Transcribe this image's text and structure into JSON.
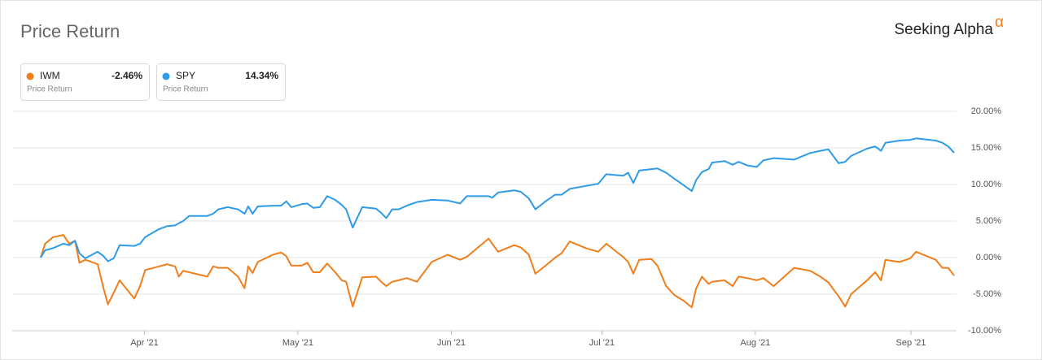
{
  "chart_data": {
    "type": "line",
    "title": "Price Return",
    "brand": "Seeking Alpha",
    "brand_mark": "α",
    "x": [
      0,
      0.6,
      1.7,
      3.1,
      3.9,
      4.7,
      5.3,
      6.1,
      7.8,
      8.6,
      9.2,
      10.0,
      10.8,
      12.8,
      13.6,
      14.3,
      16.2,
      17.3,
      18.4,
      18.9,
      19.5,
      20.3,
      22.8,
      23.6,
      24.3,
      25.6,
      27.0,
      27.9,
      28.4,
      29.0,
      29.7,
      31.8,
      32.9,
      33.6,
      34.3,
      35.7,
      36.5,
      37.3,
      38.2,
      39.2,
      40.3,
      41.2,
      41.8,
      42.7,
      44.0,
      45.9,
      46.6,
      47.3,
      48.1,
      49.0,
      50.1,
      51.5,
      53.5,
      55.7,
      57.4,
      58.3,
      61.3,
      61.8,
      62.6,
      64.8,
      65.7,
      66.8,
      67.7,
      69.1,
      70.4,
      71.3,
      72.4,
      74.6,
      76.3,
      77.4,
      79.7,
      80.4,
      81.1,
      81.9,
      83.6,
      84.4,
      85.6,
      86.7,
      88.0,
      89.1,
      89.7,
      90.5,
      91.4,
      91.9,
      93.6,
      94.7,
      95.5,
      96.7,
      98.0,
      98.9,
      100.3,
      103.1,
      105.3,
      106.7,
      107.8,
      109.2,
      110.1,
      110.9,
      113.1,
      114.2,
      115.0,
      115.6,
      117.5,
      119.0,
      119.8,
      122.5,
      123.4,
      124.2,
      125
    ],
    "series": [
      {
        "name": "IWM",
        "color": "#f07e1b",
        "last_label": "-2.46%",
        "subtitle": "Price Return",
        "values": [
          0,
          1.9,
          2.8,
          3.1,
          1.9,
          2.3,
          -0.7,
          -0.3,
          -0.9,
          -4.2,
          -6.4,
          -4.8,
          -3.1,
          -5.6,
          -3.9,
          -1.7,
          -1.2,
          -0.9,
          -1.2,
          -2.6,
          -1.8,
          -2.0,
          -2.6,
          -1.2,
          -1.4,
          -1.4,
          -2.6,
          -4.2,
          -1.2,
          -2.1,
          -0.6,
          0.4,
          0.7,
          0.2,
          -1.1,
          -1.1,
          -0.7,
          -2.0,
          -2.0,
          -0.8,
          -2.0,
          -3.1,
          -3.3,
          -6.7,
          -2.7,
          -2.6,
          -3.3,
          -3.9,
          -3.3,
          -3.1,
          -2.8,
          -3.3,
          -0.6,
          0.4,
          -0.3,
          0.1,
          2.6,
          1.9,
          0.8,
          1.7,
          1.4,
          0.4,
          -2.2,
          -1.1,
          0,
          0.6,
          2.2,
          1.3,
          0.8,
          1.9,
          0.1,
          -0.6,
          -2.2,
          -0.3,
          -0.2,
          -1.1,
          -3.9,
          -5.1,
          -5.9,
          -6.8,
          -4.2,
          -2.6,
          -3.6,
          -3.3,
          -3.1,
          -3.9,
          -2.6,
          -2.8,
          -3.1,
          -2.8,
          -3.9,
          -1.4,
          -1.8,
          -2.6,
          -3.4,
          -5.3,
          -6.7,
          -5.0,
          -3.1,
          -2.0,
          -3.1,
          -0.3,
          -0.6,
          -0.1,
          0.8,
          -0.3,
          -1.4,
          -1.4,
          -2.46
        ]
      },
      {
        "name": "SPY",
        "color": "#2d9be8",
        "last_label": "14.34%",
        "subtitle": "Price Return",
        "values": [
          0,
          1.0,
          1.3,
          1.9,
          1.7,
          2.3,
          0.6,
          -0.1,
          0.8,
          0.2,
          -0.5,
          -0.1,
          1.7,
          1.6,
          1.9,
          2.8,
          3.9,
          4.3,
          4.4,
          4.7,
          5.0,
          5.7,
          5.7,
          6.0,
          6.6,
          6.9,
          6.6,
          6.0,
          7.0,
          6.0,
          7.0,
          7.1,
          7.1,
          7.7,
          6.9,
          7.3,
          7.4,
          6.8,
          6.9,
          8.4,
          7.9,
          7.2,
          6.6,
          4.1,
          6.9,
          6.7,
          6.1,
          5.4,
          6.6,
          6.6,
          7.1,
          7.6,
          7.9,
          7.8,
          7.4,
          8.4,
          8.4,
          8.2,
          8.9,
          9.2,
          9.0,
          8.1,
          6.6,
          7.7,
          8.6,
          8.6,
          9.4,
          9.8,
          10.1,
          11.4,
          11.2,
          11.6,
          10.2,
          11.9,
          12.1,
          12.2,
          11.6,
          10.8,
          9.9,
          9.1,
          10.6,
          11.7,
          12.1,
          13.0,
          13.2,
          12.7,
          13.1,
          12.6,
          12.4,
          13.3,
          13.6,
          13.4,
          14.3,
          14.6,
          14.8,
          12.9,
          13.1,
          13.9,
          14.9,
          15.2,
          14.6,
          15.7,
          16.0,
          16.1,
          16.3,
          16.0,
          15.7,
          15.2,
          14.34
        ]
      }
    ],
    "xlim": [
      0,
      125
    ],
    "xticks": [
      {
        "value": 14.2,
        "label": "Apr '21"
      },
      {
        "value": 35.2,
        "label": "May '21"
      },
      {
        "value": 56.2,
        "label": "Jun '21"
      },
      {
        "value": 76.8,
        "label": "Jul '21"
      },
      {
        "value": 97.8,
        "label": "Aug '21"
      },
      {
        "value": 119.1,
        "label": "Sep '21"
      }
    ],
    "ylim": [
      -10,
      20
    ],
    "yticks": [
      {
        "value": 20,
        "label": "20.00%"
      },
      {
        "value": 15,
        "label": "15.00%"
      },
      {
        "value": 10,
        "label": "10.00%"
      },
      {
        "value": 5,
        "label": "5.00%"
      },
      {
        "value": 0,
        "label": "0.00%"
      },
      {
        "value": -5,
        "label": "-5.00%"
      },
      {
        "value": -10,
        "label": "-10.00%"
      }
    ],
    "grid": true
  }
}
